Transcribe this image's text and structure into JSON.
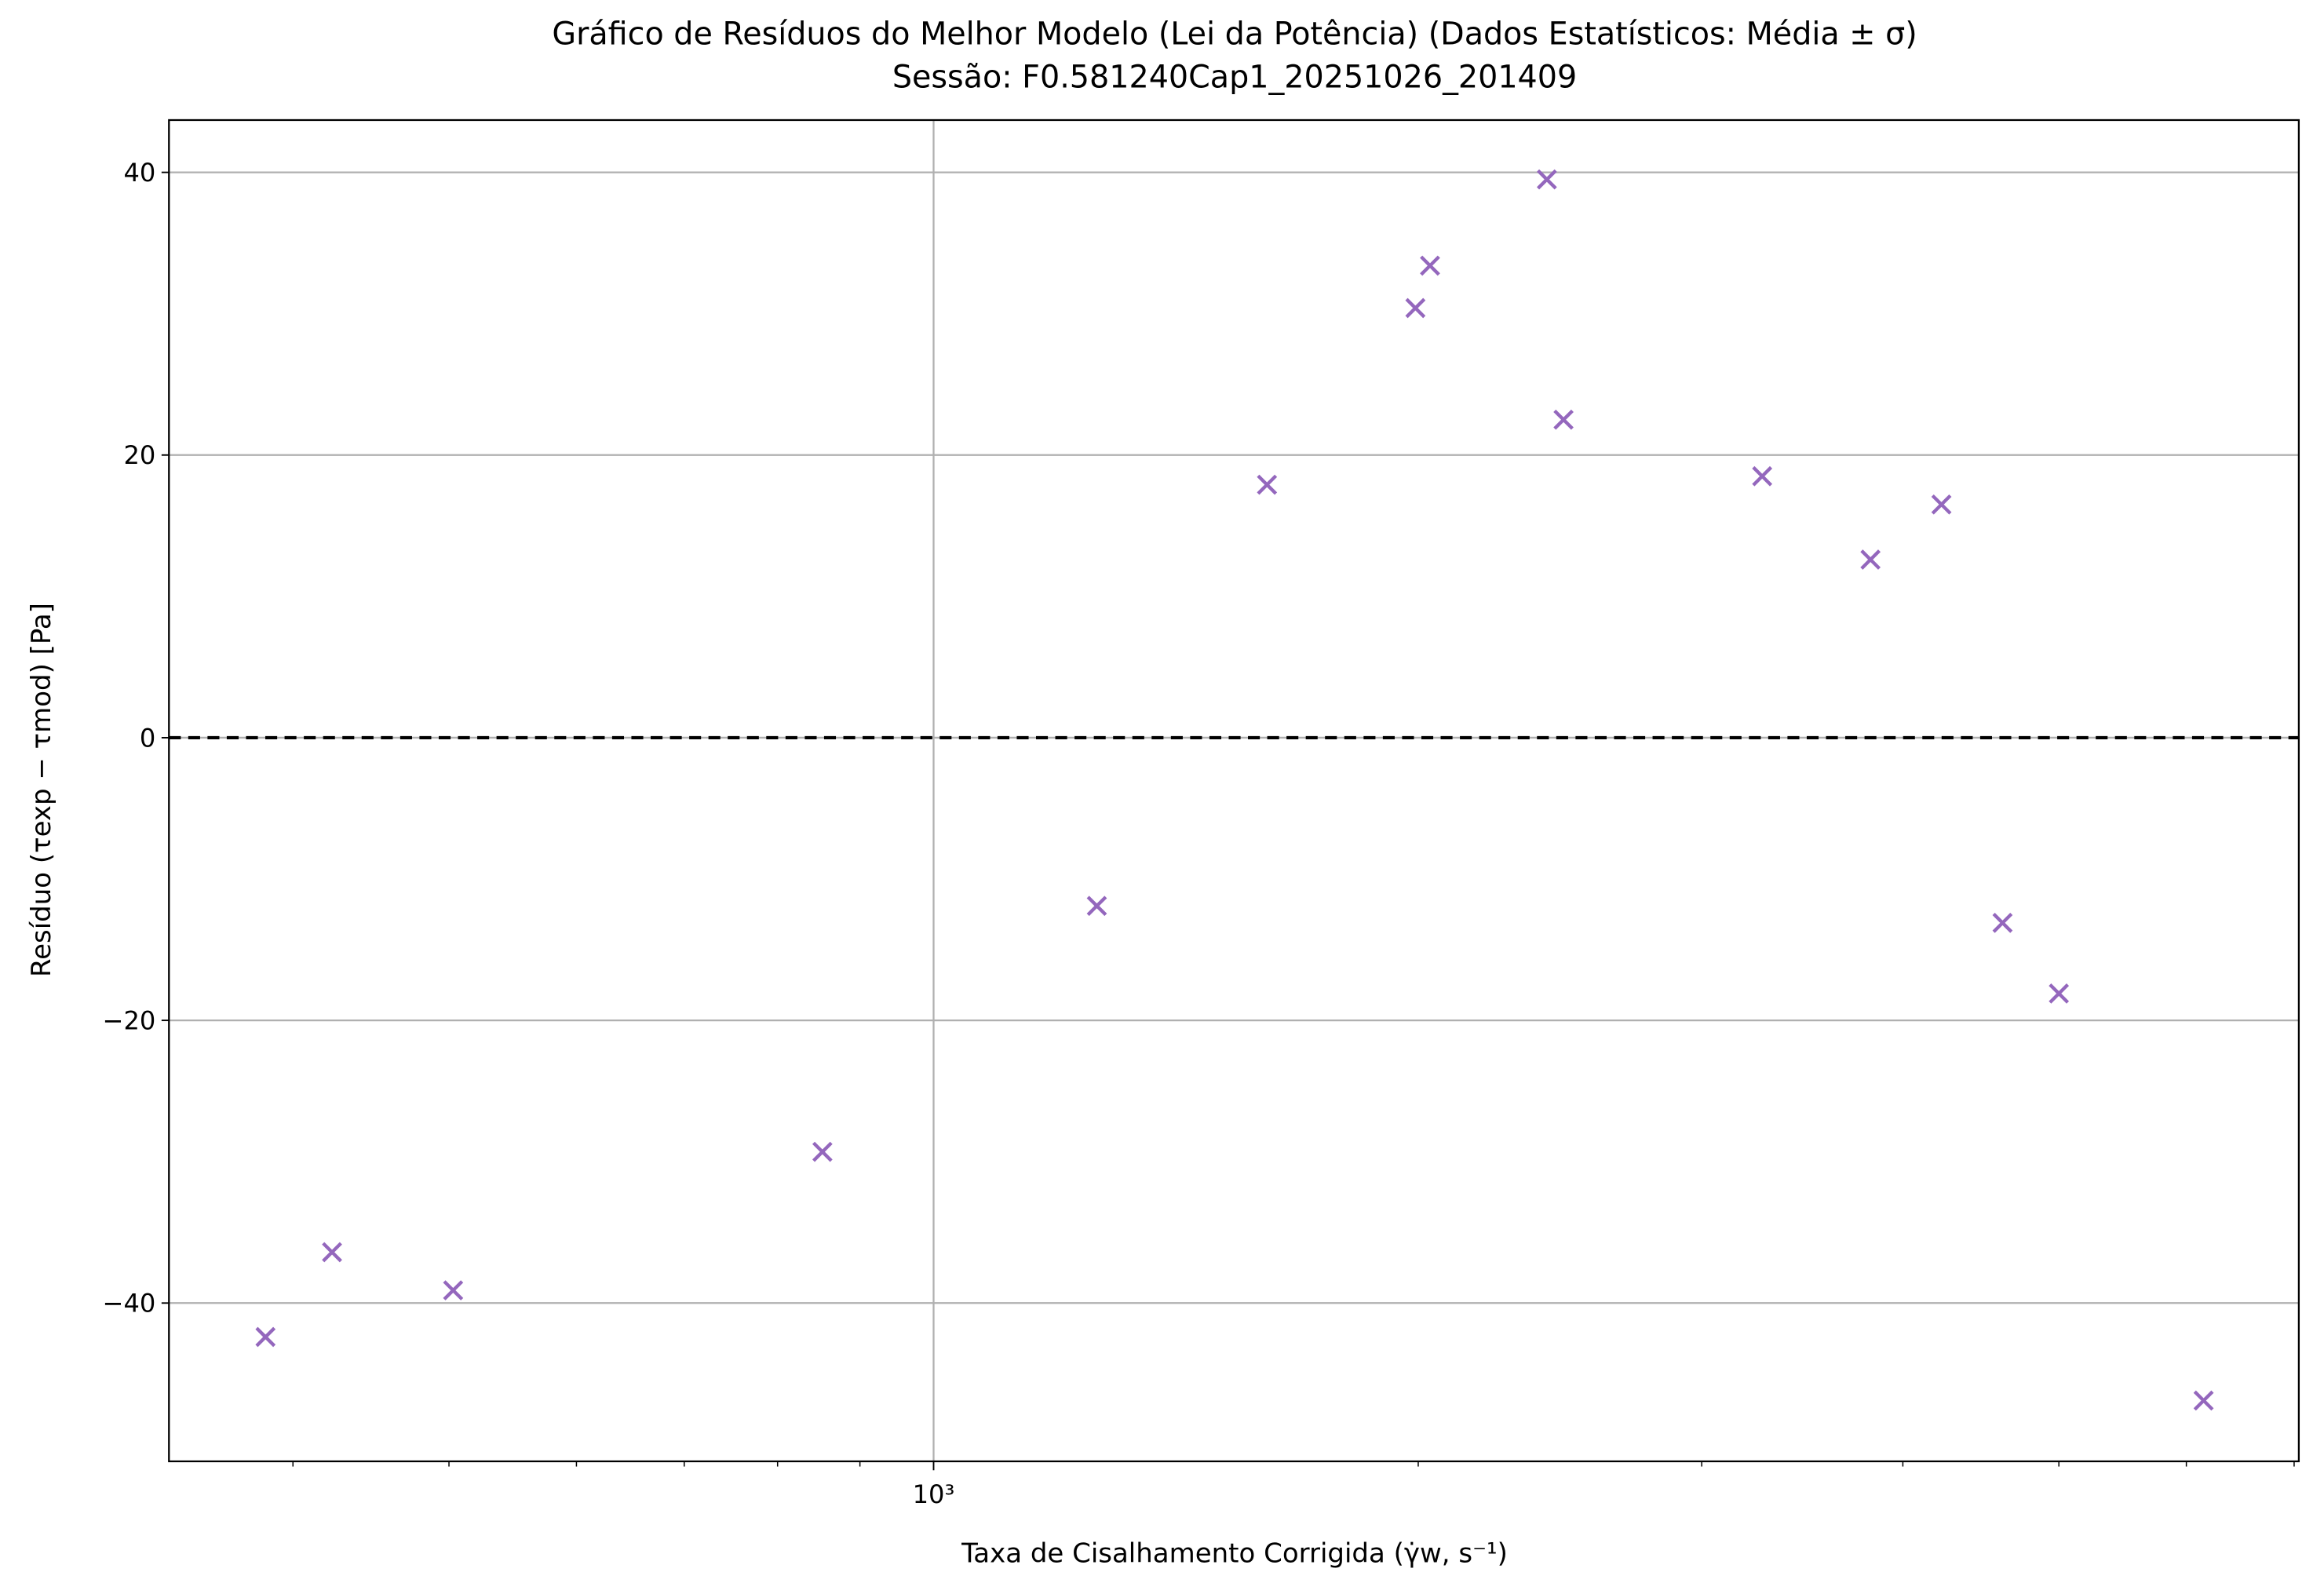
{
  "chart_data": {
    "type": "scatter",
    "title": "Gráfico de Resíduos do Melhor Modelo (Lei da Potência) (Dados Estatísticos: Média ± σ)",
    "subtitle": "Sessão: F0.581240Cap1_20251026_201409",
    "x_label": "Taxa de Cisalhamento Corrigida (γ̇w, s⁻¹)",
    "y_label": "Resíduo (τexp − τmod) [Pa]",
    "x_scale": "log",
    "xlim": [
      335,
      7047
    ],
    "ylim": [
      -51.2,
      43.7
    ],
    "xticks": [
      {
        "value": 1000,
        "label": "10³"
      }
    ],
    "xminor_ticks": [
      400,
      500,
      600,
      700,
      800,
      900,
      2000,
      3000,
      4000,
      5000,
      6000,
      7000
    ],
    "yticks": [
      {
        "value": -40,
        "label": "−40"
      },
      {
        "value": -20,
        "label": "−20"
      },
      {
        "value": 0,
        "label": "0"
      },
      {
        "value": 20,
        "label": "20"
      },
      {
        "value": 40,
        "label": "40"
      }
    ],
    "grid": true,
    "hline": 0,
    "series": [
      {
        "color": "#9467bd",
        "x": [
          384.6,
          423,
          503,
          853,
          1263,
          1611,
          1992,
          2034,
          2404,
          2462,
          3271,
          3819,
          4227,
          4613,
          5000,
          6150
        ],
        "values": [
          -42.4,
          -36.4,
          -39.1,
          -29.3,
          -11.9,
          17.9,
          30.4,
          33.4,
          39.5,
          22.5,
          18.5,
          12.6,
          16.5,
          -13.1,
          -18.1,
          -46.9
        ]
      }
    ]
  }
}
